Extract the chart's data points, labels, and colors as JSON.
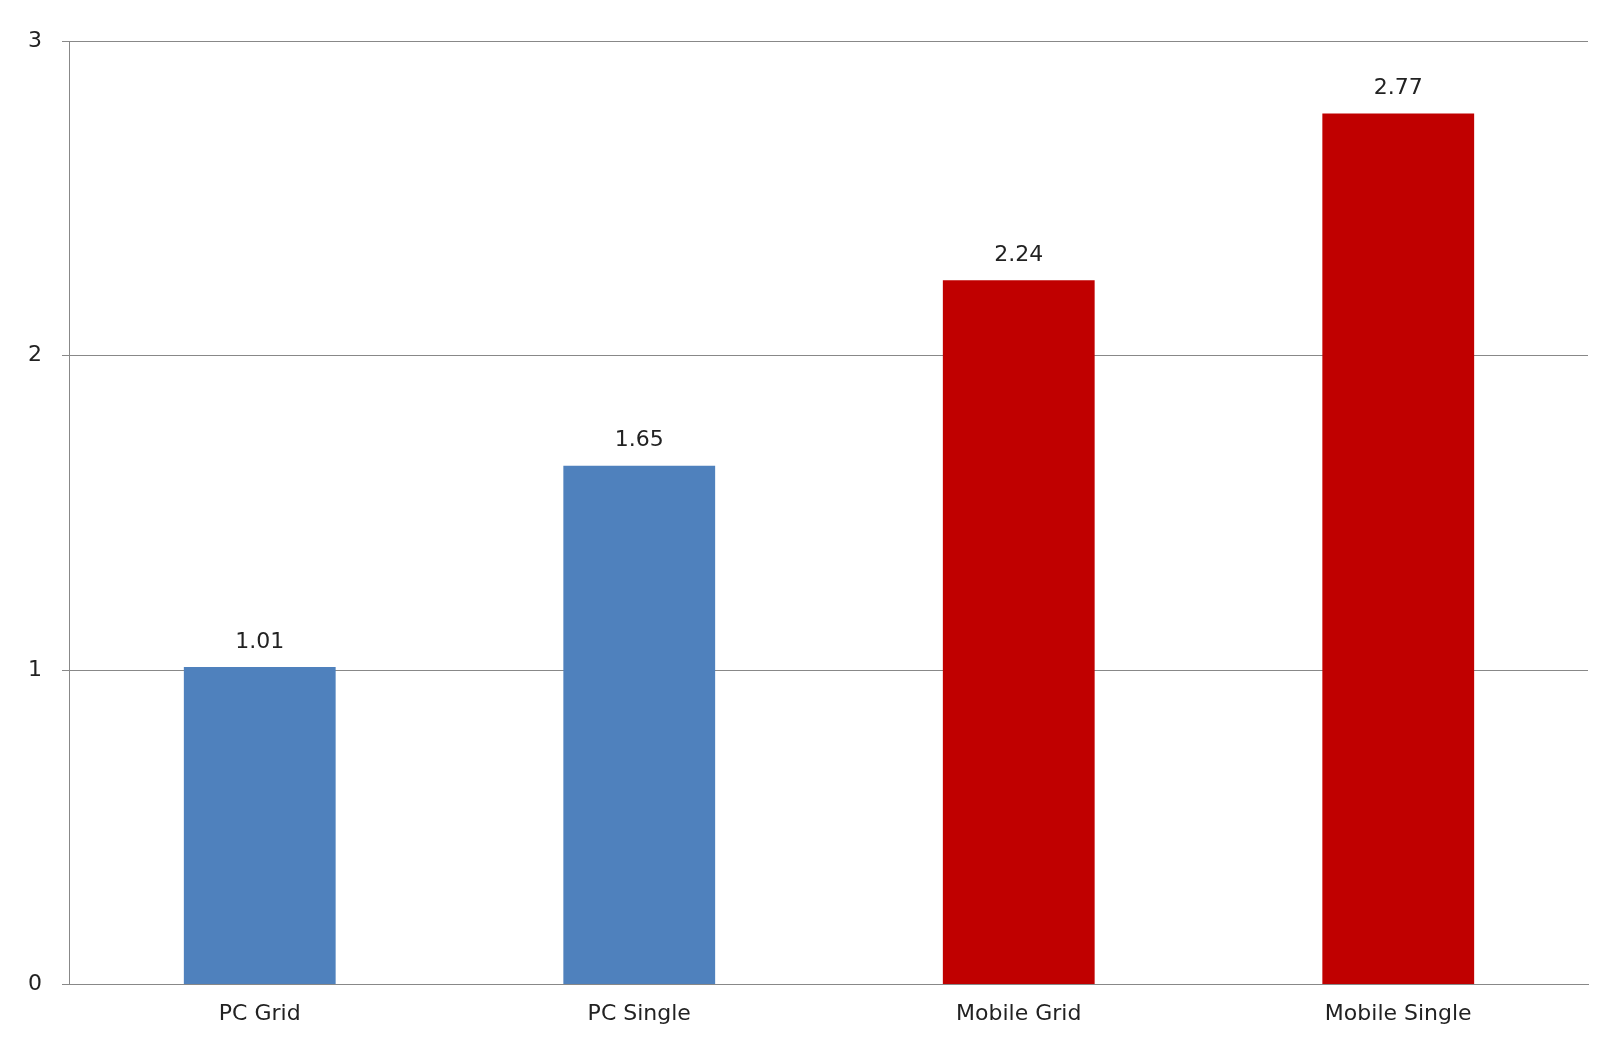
{
  "chart_data": {
    "type": "bar",
    "categories": [
      "PC Grid",
      "PC Single",
      "Mobile Grid",
      "Mobile Single"
    ],
    "values": [
      1.01,
      1.65,
      2.24,
      2.77
    ],
    "colors": [
      "#4f81bd",
      "#4f81bd",
      "#c00000",
      "#c00000"
    ],
    "ylim": [
      0,
      3
    ],
    "yticks": [
      0,
      1,
      2,
      3
    ],
    "grid": "y",
    "data_labels": true,
    "legend": false
  }
}
